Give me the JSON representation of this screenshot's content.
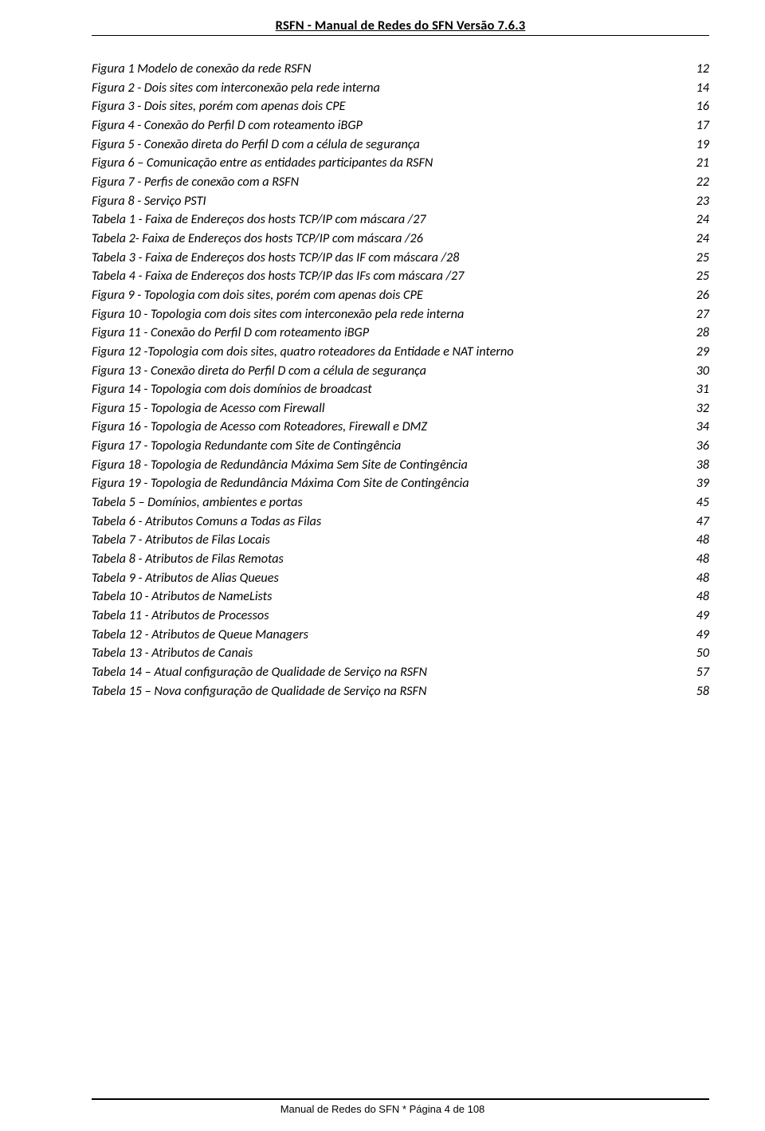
{
  "header": {
    "title": "RSFN - Manual de Redes do SFN  Versão 7.6.3"
  },
  "entries": [
    {
      "label": "Figura 1 Modelo de conexão da rede RSFN",
      "page": "12"
    },
    {
      "label": "Figura 2 - Dois sites com interconexão pela rede interna",
      "page": "14"
    },
    {
      "label": "Figura 3 - Dois sites, porém com apenas dois CPE",
      "page": "16"
    },
    {
      "label": "Figura 4 - Conexão do Perfil D com roteamento iBGP",
      "page": "17"
    },
    {
      "label": "Figura 5 - Conexão direta do Perfil D com a célula de segurança",
      "page": "19"
    },
    {
      "label": "Figura 6 – Comunicação entre as entidades participantes da RSFN",
      "page": "21"
    },
    {
      "label": "Figura 7 - Perfis de conexão com a RSFN",
      "page": "22"
    },
    {
      "label": "Figura 8 - Serviço PSTI",
      "page": "23"
    },
    {
      "label": "Tabela 1 - Faixa de Endereços dos hosts TCP/IP com máscara /27",
      "page": "24"
    },
    {
      "label": "Tabela 2- Faixa de Endereços dos hosts TCP/IP com máscara /26",
      "page": "24"
    },
    {
      "label": "Tabela 3 - Faixa de Endereços dos hosts TCP/IP das IF com máscara /28",
      "page": "25"
    },
    {
      "label": "Tabela 4 - Faixa de Endereços dos hosts TCP/IP das IFs com máscara /27",
      "page": "25"
    },
    {
      "label": "Figura 9 - Topologia com dois sites, porém com apenas dois CPE",
      "page": "26"
    },
    {
      "label": "Figura 10 - Topologia com dois sites com interconexão pela rede interna",
      "page": "27"
    },
    {
      "label": "Figura 11 - Conexão do Perfil D com roteamento iBGP",
      "page": "28"
    },
    {
      "label": "Figura 12 -Topologia com dois sites, quatro roteadores da Entidade e NAT interno",
      "page": "29"
    },
    {
      "label": "Figura 13 - Conexão direta do Perfil D com a célula de segurança",
      "page": "30"
    },
    {
      "label": "Figura 14 - Topologia com dois domínios de broadcast",
      "page": "31"
    },
    {
      "label": "Figura 15 - Topologia de Acesso com Firewall",
      "page": "32"
    },
    {
      "label": "Figura 16 - Topologia de Acesso com Roteadores, Firewall e DMZ",
      "page": "34"
    },
    {
      "label": "Figura 17 - Topologia Redundante com Site de Contingência",
      "page": "36"
    },
    {
      "label": "Figura 18 - Topologia de Redundância Máxima Sem Site de Contingência",
      "page": "38"
    },
    {
      "label": "Figura 19 - Topologia de Redundância Máxima Com Site de Contingência",
      "page": "39"
    },
    {
      "label": "Tabela 5 – Domínios, ambientes e portas",
      "page": "45"
    },
    {
      "label": "Tabela 6 - Atributos Comuns a Todas as Filas",
      "page": "47"
    },
    {
      "label": "Tabela 7 - Atributos de Filas Locais",
      "page": "48"
    },
    {
      "label": "Tabela 8 - Atributos de Filas Remotas",
      "page": "48"
    },
    {
      "label": "Tabela 9 - Atributos de Alias Queues",
      "page": "48"
    },
    {
      "label": "Tabela 10 - Atributos de NameLists",
      "page": "48"
    },
    {
      "label": "Tabela 11 - Atributos de Processos",
      "page": "49"
    },
    {
      "label": "Tabela 12 - Atributos de Queue Managers",
      "page": "49"
    },
    {
      "label": "Tabela 13 - Atributos de Canais",
      "page": "50"
    },
    {
      "label": "Tabela 14 –  Atual configuração de Qualidade de Serviço na RSFN",
      "page": "57"
    },
    {
      "label": "Tabela 15 – Nova configuração de Qualidade de Serviço na RSFN",
      "page": "58"
    }
  ],
  "footer": {
    "text": "Manual de Redes do SFN    *    Página 4 de 108"
  }
}
